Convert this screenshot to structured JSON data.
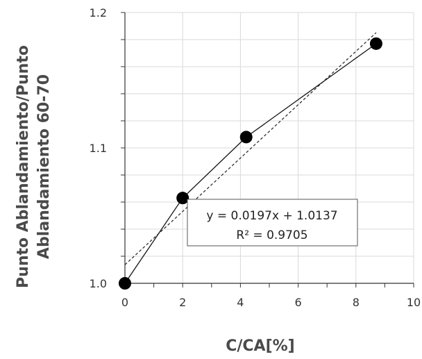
{
  "chart_data": {
    "type": "scatter",
    "xlabel": "C/CA[%]",
    "ylabel_lines": [
      "Punto Ablandamiento/Punto",
      "Ablandamiento 60-70"
    ],
    "xlim": [
      0,
      10
    ],
    "ylim": [
      1.0,
      1.2
    ],
    "x_ticks": [
      0,
      2,
      4,
      6,
      8,
      10
    ],
    "x_tick_labels": [
      "0",
      "2",
      "4",
      "6",
      "8",
      "10"
    ],
    "y_ticks": [
      1.0,
      1.1,
      1.2
    ],
    "y_tick_labels": [
      "1.0",
      "1.1",
      "1.2"
    ],
    "y_minor_step": 0.02,
    "grid": true,
    "series": [
      {
        "x": [
          0,
          2,
          4.2,
          8.7
        ],
        "y": [
          1.0,
          1.063,
          1.108,
          1.177
        ]
      }
    ],
    "trendline": {
      "type": "linear",
      "slope": 0.0197,
      "intercept": 1.0137,
      "x_range": [
        0,
        8.7
      ],
      "equation": "y = 0.0197x + 1.0137",
      "r_squared": "R² = 0.9705"
    }
  }
}
